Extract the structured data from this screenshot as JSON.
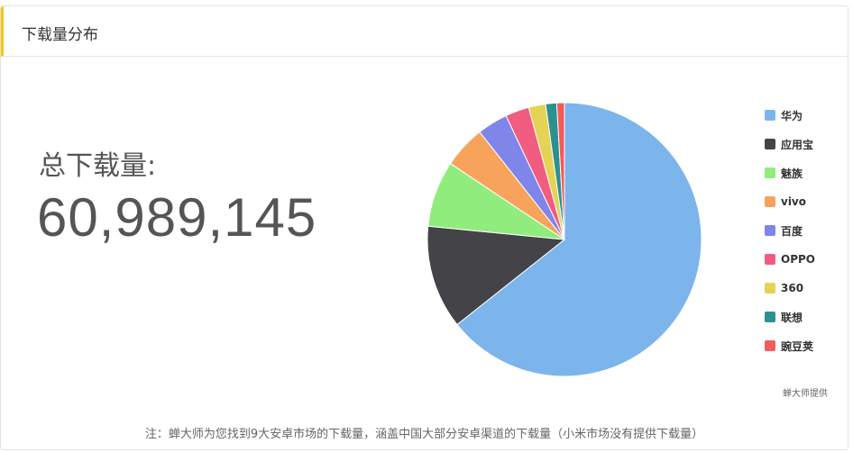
{
  "card": {
    "title": "下载量分布"
  },
  "summary": {
    "label": "总下载量:",
    "value": "60,989,145"
  },
  "credit": "蝉大师提供",
  "note": "注：蝉大师为您找到9大安卓市场的下载量，涵盖中国大部分安卓渠道的下载量（小米市场没有提供下载量）",
  "chart_data": {
    "type": "pie",
    "categories": [
      "华为",
      "应用宝",
      "魅族",
      "vivo",
      "百度",
      "OPPO",
      "360",
      "联想",
      "豌豆荚"
    ],
    "values": [
      64.2,
      12.2,
      7.8,
      5.0,
      3.6,
      2.8,
      2.0,
      1.3,
      0.9
    ],
    "colors": [
      "#7cb5ec",
      "#434348",
      "#90ed7d",
      "#f7a35c",
      "#8085e9",
      "#f15c80",
      "#e4d354",
      "#2b908f",
      "#f45b5b"
    ],
    "start_angle": "top",
    "legend_position": "right"
  }
}
